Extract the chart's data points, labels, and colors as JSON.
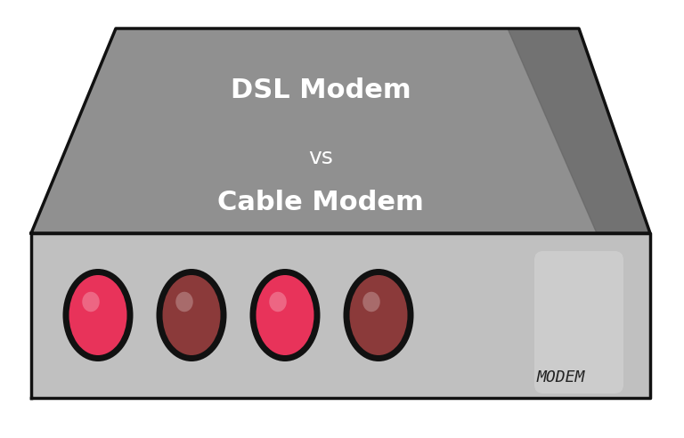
{
  "title_line1": "DSL Modem",
  "title_line2": "vs",
  "title_line3": "Cable Modem",
  "modem_label": "MODEM",
  "bg_color": "#ffffff",
  "body_color_top": "#888888",
  "body_color_bottom": "#b0b0b0",
  "body_outline": "#111111",
  "top_part_color": "#909090",
  "bottom_part_color": "#c0c0c0",
  "led_colors": [
    "#e8335a",
    "#8b3a3a",
    "#e8335a",
    "#8b3a3a"
  ],
  "led_outline": "#111111",
  "text_color": "#ffffff",
  "label_color": "#222222",
  "shine_color": "#aaaaaa"
}
